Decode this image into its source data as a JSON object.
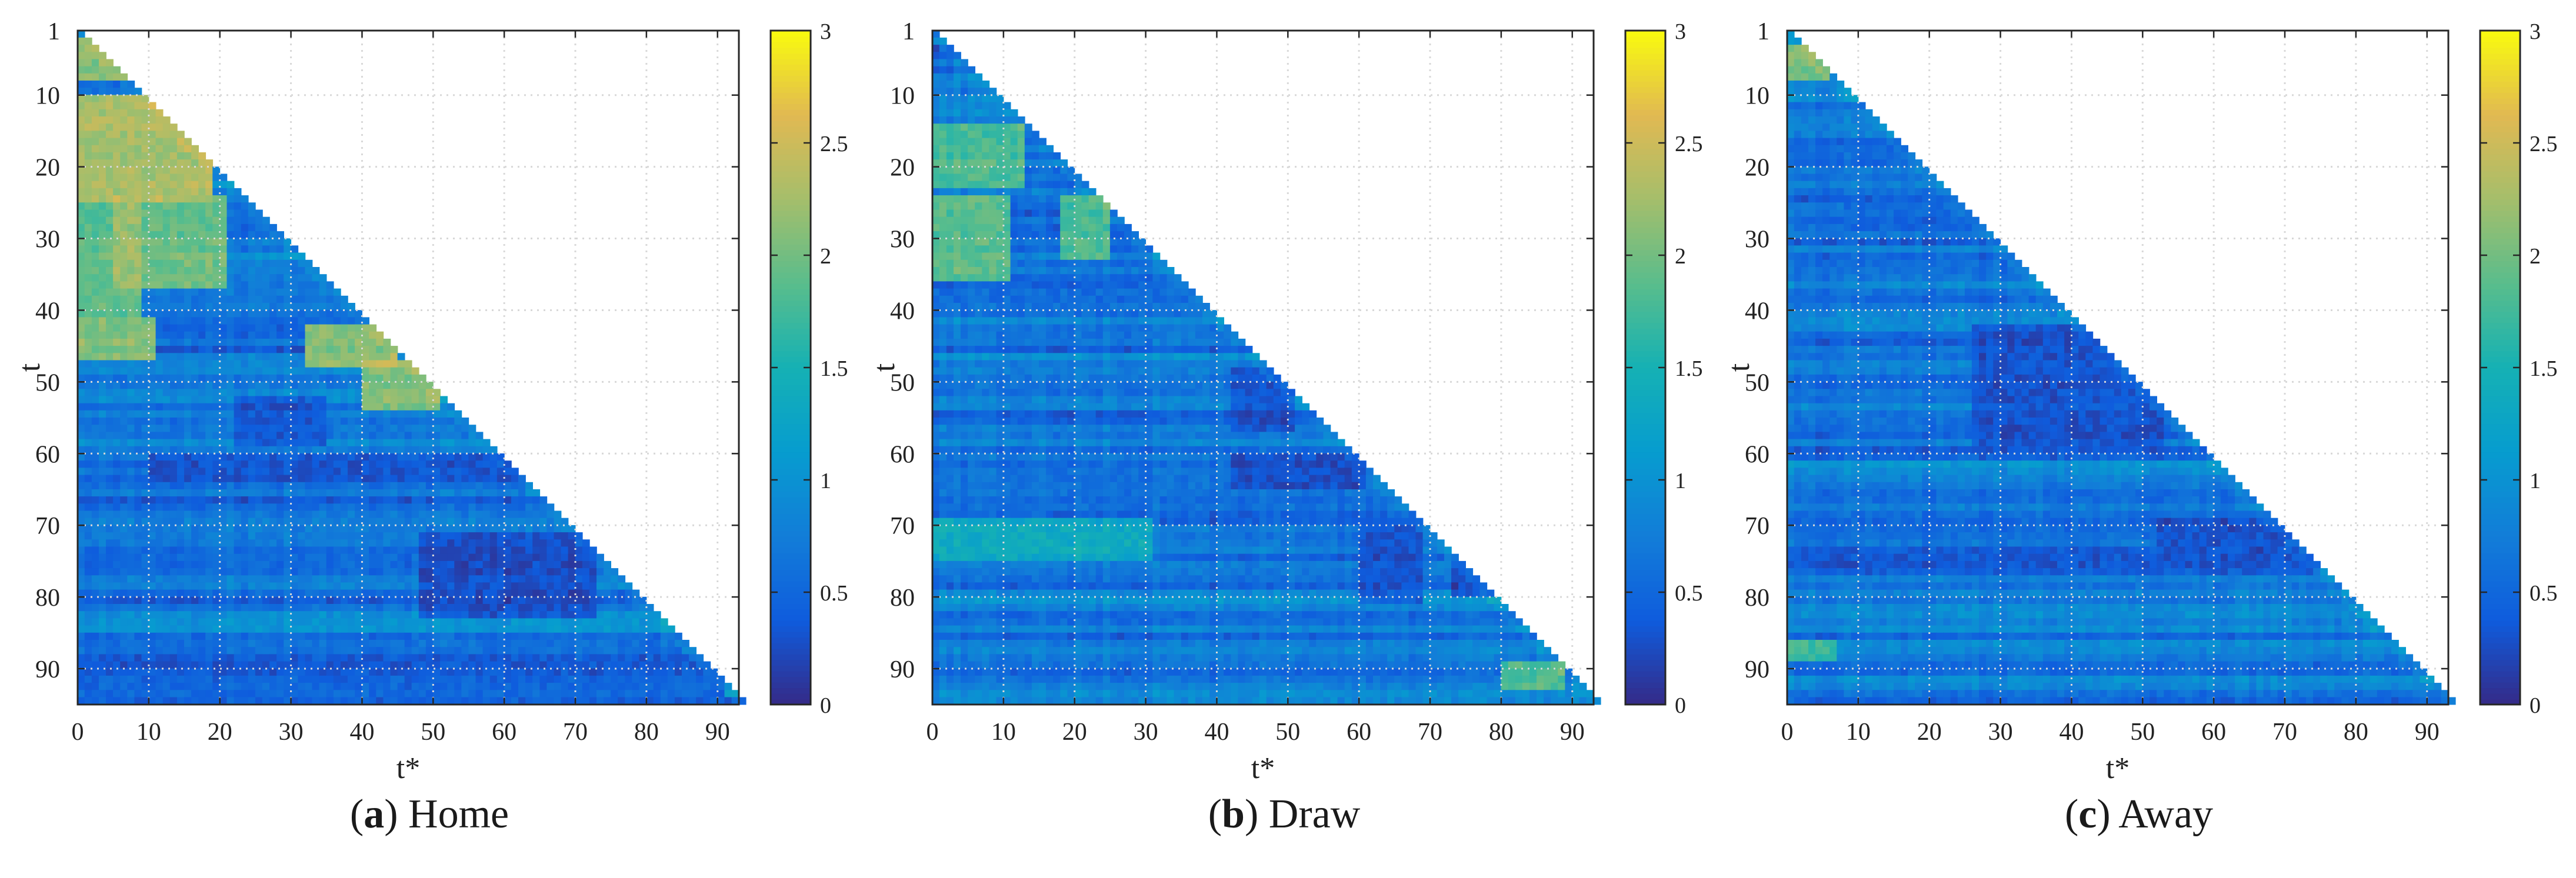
{
  "panels": [
    {
      "letter": "a",
      "name": "Home"
    },
    {
      "letter": "b",
      "name": "Draw"
    },
    {
      "letter": "c",
      "name": "Away"
    }
  ],
  "chart_data": [
    {
      "type": "heatmap",
      "title": "",
      "xlabel": "t*",
      "ylabel": "t",
      "xlim": [
        0,
        93
      ],
      "ylim": [
        1,
        94
      ],
      "x_ticks": [
        0,
        10,
        20,
        30,
        40,
        50,
        60,
        70,
        80,
        90
      ],
      "y_ticks": [
        1,
        10,
        20,
        30,
        40,
        50,
        60,
        70,
        80,
        90
      ],
      "colorbar": {
        "range": [
          0,
          3
        ],
        "ticks": [
          0,
          0.5,
          1,
          1.5,
          2,
          2.5,
          3
        ],
        "tick_labels": [
          "0",
          "0.5",
          "1",
          "1.5",
          "2",
          "2.5",
          "3"
        ],
        "colormap": "parula"
      },
      "grid": true,
      "mask": "lower-triangle (t* < t)",
      "zones": [
        {
          "t": [
            2,
            7
          ],
          "ts": [
            0,
            6
          ],
          "v": 2.6
        },
        {
          "t": [
            10,
            24
          ],
          "ts": [
            0,
            18
          ],
          "v": 2.8
        },
        {
          "t": [
            24,
            36
          ],
          "ts": [
            5,
            20
          ],
          "v": 2.4
        },
        {
          "t": [
            25,
            40
          ],
          "ts": [
            0,
            8
          ],
          "v": 2.3
        },
        {
          "t": [
            41,
            46
          ],
          "ts": [
            0,
            10
          ],
          "v": 2.6
        },
        {
          "t": [
            42,
            47
          ],
          "ts": [
            32,
            44
          ],
          "v": 2.6
        },
        {
          "t": [
            47,
            53
          ],
          "ts": [
            40,
            50
          ],
          "v": 2.5
        },
        {
          "t": [
            52,
            58
          ],
          "ts": [
            22,
            34
          ],
          "v": 0.25
        },
        {
          "t": [
            60,
            63
          ],
          "ts": [
            10,
            62
          ],
          "v": 0.25
        },
        {
          "t": [
            71,
            82
          ],
          "ts": [
            48,
            72
          ],
          "v": 0.15
        },
        {
          "t": [
            88,
            93
          ],
          "ts": [
            0,
            90
          ],
          "v": 0.35
        }
      ]
    },
    {
      "type": "heatmap",
      "title": "",
      "xlabel": "t*",
      "ylabel": "t",
      "xlim": [
        0,
        93
      ],
      "ylim": [
        1,
        94
      ],
      "x_ticks": [
        0,
        10,
        20,
        30,
        40,
        50,
        60,
        70,
        80,
        90
      ],
      "y_ticks": [
        1,
        10,
        20,
        30,
        40,
        50,
        60,
        70,
        80,
        90
      ],
      "colorbar": {
        "range": [
          0,
          3
        ],
        "ticks": [
          0,
          0.5,
          1,
          1.5,
          2,
          2.5,
          3
        ],
        "tick_labels": [
          "0",
          "0.5",
          "1",
          "1.5",
          "2",
          "2.5",
          "3"
        ],
        "colormap": "parula"
      },
      "grid": true,
      "mask": "lower-triangle (t* < t)",
      "zones": [
        {
          "t": [
            14,
            22
          ],
          "ts": [
            0,
            12
          ],
          "v": 2.2
        },
        {
          "t": [
            24,
            35
          ],
          "ts": [
            0,
            10
          ],
          "v": 2.3
        },
        {
          "t": [
            24,
            32
          ],
          "ts": [
            18,
            24
          ],
          "v": 2.2
        },
        {
          "t": [
            36,
            40
          ],
          "ts": [
            0,
            40
          ],
          "v": 0.5
        },
        {
          "t": [
            48,
            56
          ],
          "ts": [
            42,
            50
          ],
          "v": 0.2
        },
        {
          "t": [
            60,
            64
          ],
          "ts": [
            42,
            60
          ],
          "v": 0.15
        },
        {
          "t": [
            69,
            74
          ],
          "ts": [
            0,
            30
          ],
          "v": 1.6
        },
        {
          "t": [
            70,
            80
          ],
          "ts": [
            60,
            68
          ],
          "v": 0.2
        },
        {
          "t": [
            75,
            79
          ],
          "ts": [
            73,
            78
          ],
          "v": 0.15
        },
        {
          "t": [
            89,
            92
          ],
          "ts": [
            80,
            88
          ],
          "v": 2.2
        }
      ]
    },
    {
      "type": "heatmap",
      "title": "",
      "xlabel": "t*",
      "ylabel": "t",
      "xlim": [
        0,
        93
      ],
      "ylim": [
        1,
        94
      ],
      "x_ticks": [
        0,
        10,
        20,
        30,
        40,
        50,
        60,
        70,
        80,
        90
      ],
      "y_ticks": [
        1,
        10,
        20,
        30,
        40,
        50,
        60,
        70,
        80,
        90
      ],
      "colorbar": {
        "range": [
          0,
          3
        ],
        "ticks": [
          0,
          0.5,
          1,
          1.5,
          2,
          2.5,
          3
        ],
        "tick_labels": [
          "0",
          "0.5",
          "1",
          "1.5",
          "2",
          "2.5",
          "3"
        ],
        "colormap": "parula"
      },
      "grid": true,
      "mask": "lower-triangle (t* < t)",
      "zones": [
        {
          "t": [
            3,
            7
          ],
          "ts": [
            0,
            5
          ],
          "v": 2.4
        },
        {
          "t": [
            24,
            28
          ],
          "ts": [
            8,
            26
          ],
          "v": 0.45
        },
        {
          "t": [
            42,
            58
          ],
          "ts": [
            26,
            52
          ],
          "v": 0.2
        },
        {
          "t": [
            69,
            74
          ],
          "ts": [
            52,
            72
          ],
          "v": 0.2
        },
        {
          "t": [
            73,
            76
          ],
          "ts": [
            0,
            74
          ],
          "v": 0.3
        },
        {
          "t": [
            86,
            88
          ],
          "ts": [
            0,
            6
          ],
          "v": 2.0
        }
      ]
    }
  ]
}
